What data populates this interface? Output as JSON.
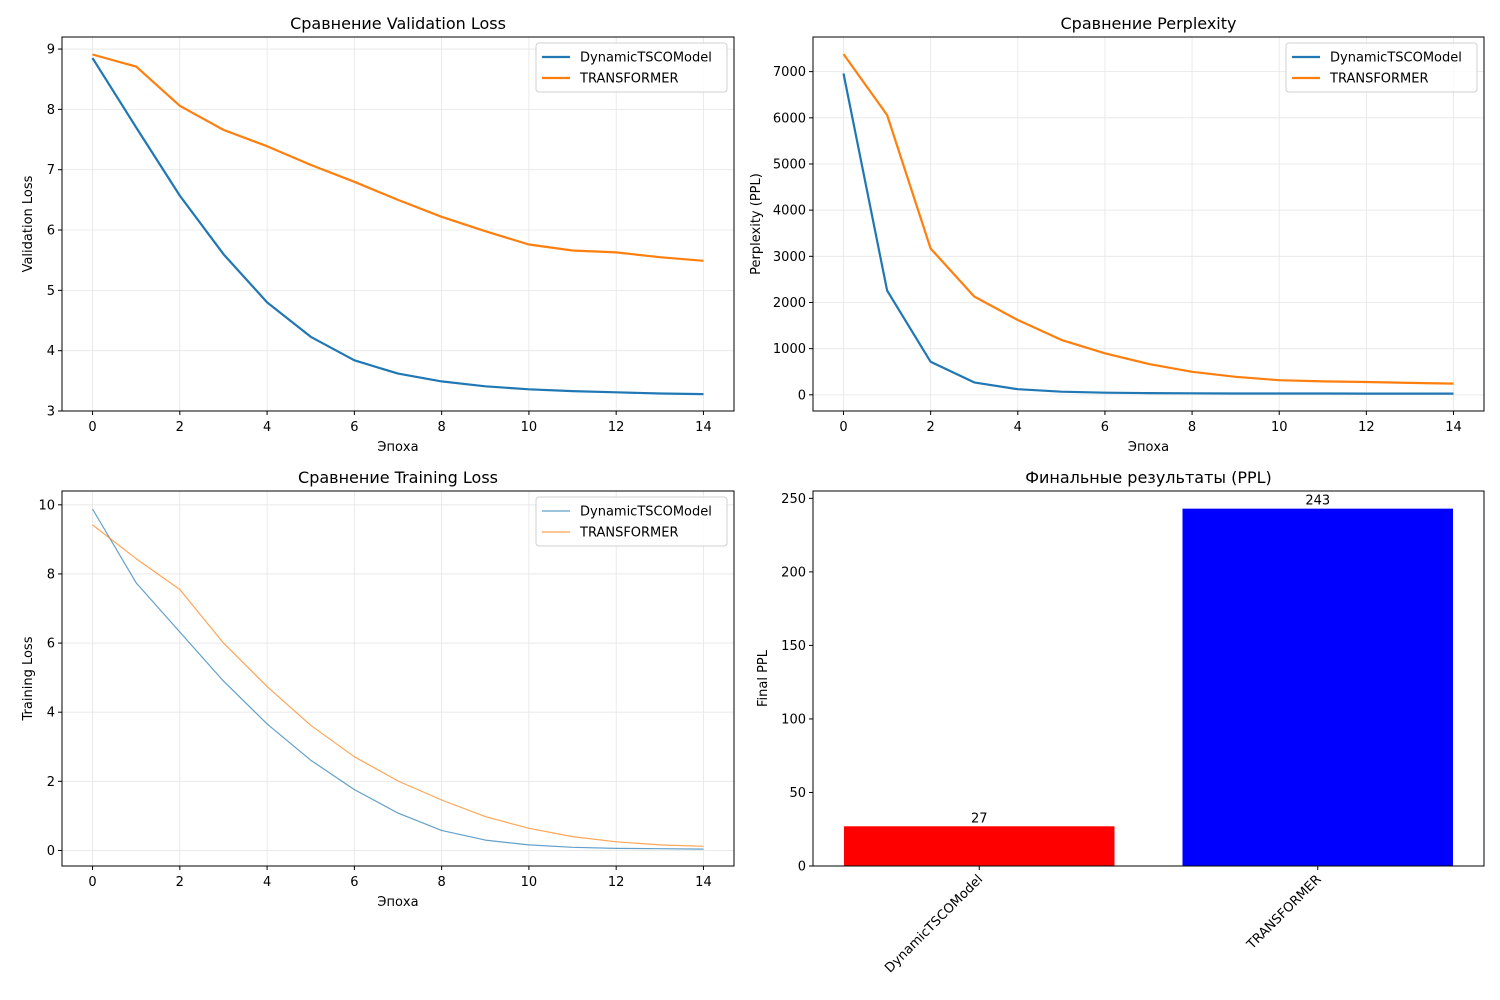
{
  "chart_data": [
    {
      "id": "val",
      "type": "line",
      "title": "Сравнение Validation Loss",
      "xlabel": "Эпоха",
      "ylabel": "Validation Loss",
      "xlim": [
        -0.7,
        14.7
      ],
      "ylim": [
        3,
        9.2
      ],
      "xticks": [
        0,
        2,
        4,
        6,
        8,
        10,
        12,
        14
      ],
      "yticks": [
        3,
        4,
        5,
        6,
        7,
        8,
        9
      ],
      "grid": true,
      "legend_position": "top-right",
      "x": [
        0,
        1,
        2,
        3,
        4,
        5,
        6,
        7,
        8,
        9,
        10,
        11,
        12,
        13,
        14
      ],
      "series": [
        {
          "name": "DynamicTSCOModel",
          "color": "#1f77b4",
          "width": 2.2,
          "opacity": 1,
          "values": [
            8.85,
            7.7,
            6.57,
            5.6,
            4.8,
            4.23,
            3.84,
            3.62,
            3.49,
            3.41,
            3.36,
            3.33,
            3.31,
            3.29,
            3.28
          ]
        },
        {
          "name": "TRANSFORMER",
          "color": "#ff7f0e",
          "width": 2.2,
          "opacity": 1,
          "values": [
            8.91,
            8.71,
            8.06,
            7.66,
            7.39,
            7.08,
            6.8,
            6.5,
            6.22,
            5.98,
            5.76,
            5.66,
            5.63,
            5.55,
            5.49
          ]
        }
      ]
    },
    {
      "id": "ppl",
      "type": "line",
      "title": "Сравнение Perplexity",
      "xlabel": "Эпоха",
      "ylabel": "Perplexity (PPL)",
      "xlim": [
        -0.7,
        14.7
      ],
      "ylim": [
        -350,
        7750
      ],
      "xticks": [
        0,
        2,
        4,
        6,
        8,
        10,
        12,
        14
      ],
      "yticks": [
        0,
        1000,
        2000,
        3000,
        4000,
        5000,
        6000,
        7000
      ],
      "grid": true,
      "legend_position": "top-right",
      "x": [
        0,
        1,
        2,
        3,
        4,
        5,
        6,
        7,
        8,
        9,
        10,
        11,
        12,
        13,
        14
      ],
      "series": [
        {
          "name": "DynamicTSCOModel",
          "color": "#1f77b4",
          "width": 2.2,
          "opacity": 1,
          "values": [
            6960,
            2260,
            715,
            270,
            122,
            69,
            47,
            38,
            33,
            30,
            29,
            28,
            27,
            27,
            27
          ]
        },
        {
          "name": "TRANSFORMER",
          "color": "#ff7f0e",
          "width": 2.2,
          "opacity": 1,
          "values": [
            7380,
            6060,
            3170,
            2130,
            1620,
            1190,
            900,
            670,
            500,
            390,
            318,
            290,
            278,
            258,
            243
          ]
        }
      ]
    },
    {
      "id": "train",
      "type": "line",
      "title": "Сравнение Training Loss",
      "xlabel": "Эпоха",
      "ylabel": "Training Loss",
      "xlim": [
        -0.7,
        14.7
      ],
      "ylim": [
        -0.45,
        10.4
      ],
      "xticks": [
        0,
        2,
        4,
        6,
        8,
        10,
        12,
        14
      ],
      "yticks": [
        0,
        2,
        4,
        6,
        8,
        10
      ],
      "grid": true,
      "legend_position": "top-right",
      "x": [
        0,
        1,
        2,
        3,
        4,
        5,
        6,
        7,
        8,
        9,
        10,
        11,
        12,
        13,
        14
      ],
      "series": [
        {
          "name": "DynamicTSCOModel",
          "color": "#1f77b4",
          "width": 1.2,
          "opacity": 0.7,
          "values": [
            9.88,
            7.74,
            6.32,
            4.9,
            3.66,
            2.61,
            1.76,
            1.08,
            0.58,
            0.3,
            0.16,
            0.09,
            0.06,
            0.05,
            0.04
          ]
        },
        {
          "name": "TRANSFORMER",
          "color": "#ff7f0e",
          "width": 1.2,
          "opacity": 0.7,
          "values": [
            9.42,
            8.44,
            7.55,
            6.0,
            4.74,
            3.62,
            2.71,
            2.01,
            1.46,
            0.98,
            0.64,
            0.4,
            0.25,
            0.16,
            0.12
          ]
        }
      ]
    },
    {
      "id": "bar",
      "type": "bar",
      "title": "Финальные результаты (PPL)",
      "xlabel": "",
      "ylabel": "Final PPL",
      "ylim": [
        0,
        255
      ],
      "yticks": [
        0,
        50,
        100,
        150,
        200,
        250
      ],
      "grid": false,
      "categories": [
        "DynamicTSCOModel",
        "TRANSFORMER"
      ],
      "values": [
        27,
        243
      ],
      "value_labels": [
        "27",
        "243"
      ],
      "colors": [
        "#ff0000",
        "#0000ff"
      ]
    }
  ]
}
